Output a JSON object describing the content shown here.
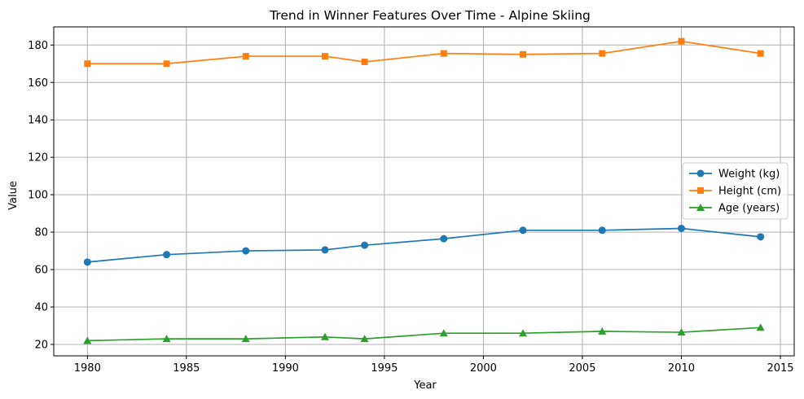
{
  "chart_data": {
    "type": "line",
    "title": "Trend in Winner Features Over Time - Alpine Skiing",
    "xlabel": "Year",
    "ylabel": "Value",
    "x": [
      1980,
      1984,
      1988,
      1992,
      1994,
      1998,
      2002,
      2006,
      2010,
      2014
    ],
    "xlim": [
      1978.3,
      2015.7
    ],
    "ylim": [
      13.9,
      189.7
    ],
    "xticks": [
      1980,
      1985,
      1990,
      1995,
      2000,
      2005,
      2010,
      2015
    ],
    "yticks": [
      20,
      40,
      60,
      80,
      100,
      120,
      140,
      160,
      180
    ],
    "grid": true,
    "legend_position": "center-right",
    "series": [
      {
        "name": "Weight (kg)",
        "color": "#1f77b4",
        "marker": "circle",
        "values": [
          64,
          68,
          70,
          70.5,
          73,
          76.5,
          81,
          81,
          82,
          77.5
        ]
      },
      {
        "name": "Height (cm)",
        "color": "#ff7f0e",
        "marker": "square",
        "values": [
          170,
          170,
          174,
          174,
          171,
          175.5,
          175,
          175.5,
          182,
          175.5
        ]
      },
      {
        "name": "Age (years)",
        "color": "#2ca02c",
        "marker": "triangle",
        "values": [
          22,
          23,
          23,
          24,
          23,
          26,
          26,
          27,
          26.5,
          29
        ]
      }
    ]
  }
}
